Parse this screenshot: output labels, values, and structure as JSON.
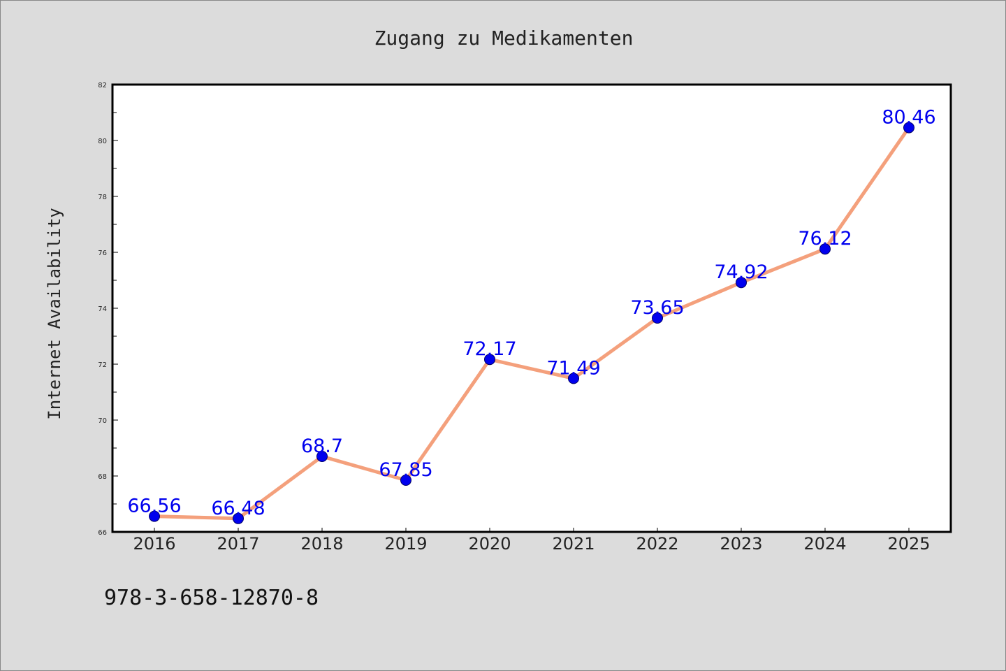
{
  "chart_data": {
    "type": "line",
    "title": "Zugang zu Medikamenten",
    "xlabel": "",
    "ylabel": "Internet Availability",
    "categories": [
      "2016",
      "2017",
      "2018",
      "2019",
      "2020",
      "2021",
      "2022",
      "2023",
      "2024",
      "2025"
    ],
    "series": [
      {
        "values": [
          66.56,
          66.48,
          68.7,
          67.85,
          72.17,
          71.49,
          73.65,
          74.92,
          76.12,
          80.46
        ],
        "data_labels": [
          "66.56",
          "66.48",
          "68.7",
          "67.85",
          "72.17",
          "71.49",
          "73.65",
          "74.92",
          "76.12",
          "80.46"
        ]
      }
    ],
    "ylim": [
      66,
      82
    ],
    "yticks": [
      "66",
      "68",
      "70",
      "72",
      "74",
      "76",
      "78",
      "80",
      "82"
    ],
    "grid": false,
    "colors": {
      "line": "#f4a07c",
      "marker": "#0000ee",
      "data_label": "#0000ee",
      "plot_background": "#ffffff",
      "figure_background": "#dcdcdc"
    }
  },
  "footnote": "978-3-658-12870-8"
}
